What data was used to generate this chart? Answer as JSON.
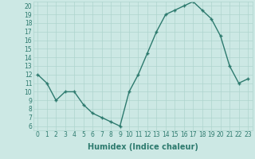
{
  "x": [
    0,
    1,
    2,
    3,
    4,
    5,
    6,
    7,
    8,
    9,
    10,
    11,
    12,
    13,
    14,
    15,
    16,
    17,
    18,
    19,
    20,
    21,
    22,
    23
  ],
  "y": [
    12,
    11,
    9,
    10,
    10,
    8.5,
    7.5,
    7,
    6.5,
    6,
    10,
    12,
    14.5,
    17,
    19,
    19.5,
    20,
    20.5,
    19.5,
    18.5,
    16.5,
    13,
    11,
    11.5
  ],
  "line_color": "#2d7a6e",
  "marker": "+",
  "bg_color": "#cce8e4",
  "grid_color": "#aed4ce",
  "xlabel": "Humidex (Indice chaleur)",
  "xlim": [
    -0.5,
    23.5
  ],
  "ylim": [
    5.5,
    20.5
  ],
  "yticks": [
    6,
    7,
    8,
    9,
    10,
    11,
    12,
    13,
    14,
    15,
    16,
    17,
    18,
    19,
    20
  ],
  "xticks": [
    0,
    1,
    2,
    3,
    4,
    5,
    6,
    7,
    8,
    9,
    10,
    11,
    12,
    13,
    14,
    15,
    16,
    17,
    18,
    19,
    20,
    21,
    22,
    23
  ],
  "label_fontsize": 7,
  "tick_fontsize": 5.5,
  "linewidth": 1.0,
  "markersize": 3.5,
  "markeredgewidth": 1.0
}
